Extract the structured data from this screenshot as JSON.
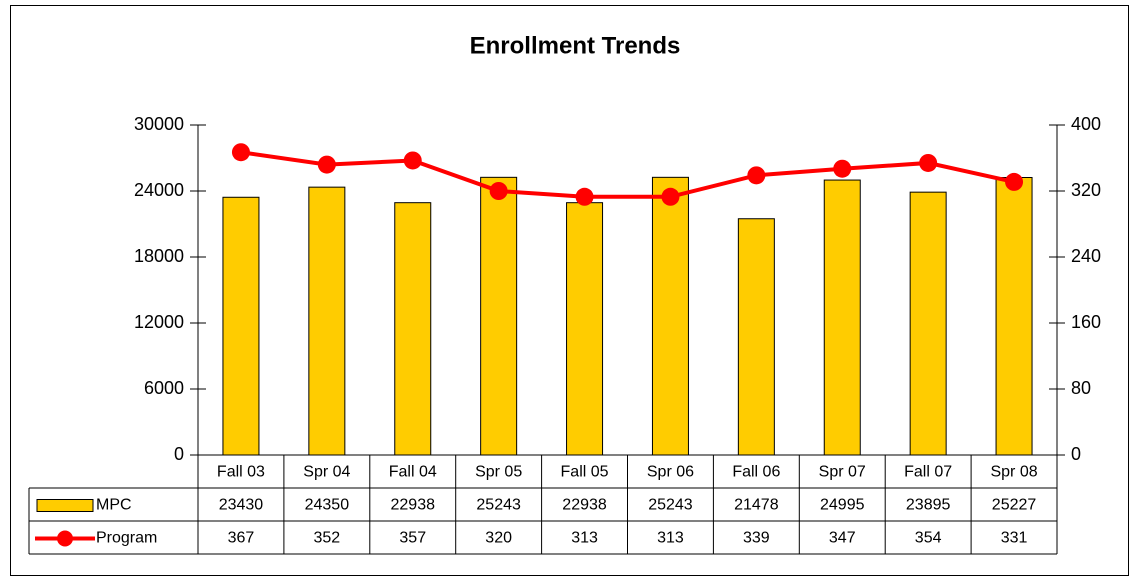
{
  "chart_data": {
    "type": "bar",
    "title": "Enrollment Trends",
    "categories": [
      "Fall 03",
      "Spr 04",
      "Fall 04",
      "Spr 05",
      "Fall 05",
      "Spr 06",
      "Fall 06",
      "Spr 07",
      "Fall 07",
      "Spr 08"
    ],
    "series": [
      {
        "name": "MPC",
        "type": "bar",
        "color": "#ffcc00",
        "values": [
          23430,
          24350,
          22938,
          25243,
          22938,
          25243,
          21478,
          24995,
          23895,
          25227
        ]
      },
      {
        "name": "Program",
        "type": "line",
        "axis": "y2",
        "color": "#ff0000",
        "values": [
          367,
          352,
          357,
          320,
          313,
          313,
          339,
          347,
          354,
          331
        ]
      }
    ],
    "ylim": [
      0,
      30000
    ],
    "yticks": [
      0,
      6000,
      12000,
      18000,
      24000,
      30000
    ],
    "y2lim": [
      0,
      400
    ],
    "y2ticks": [
      0,
      80,
      160,
      240,
      320,
      400
    ],
    "data_table": true
  }
}
